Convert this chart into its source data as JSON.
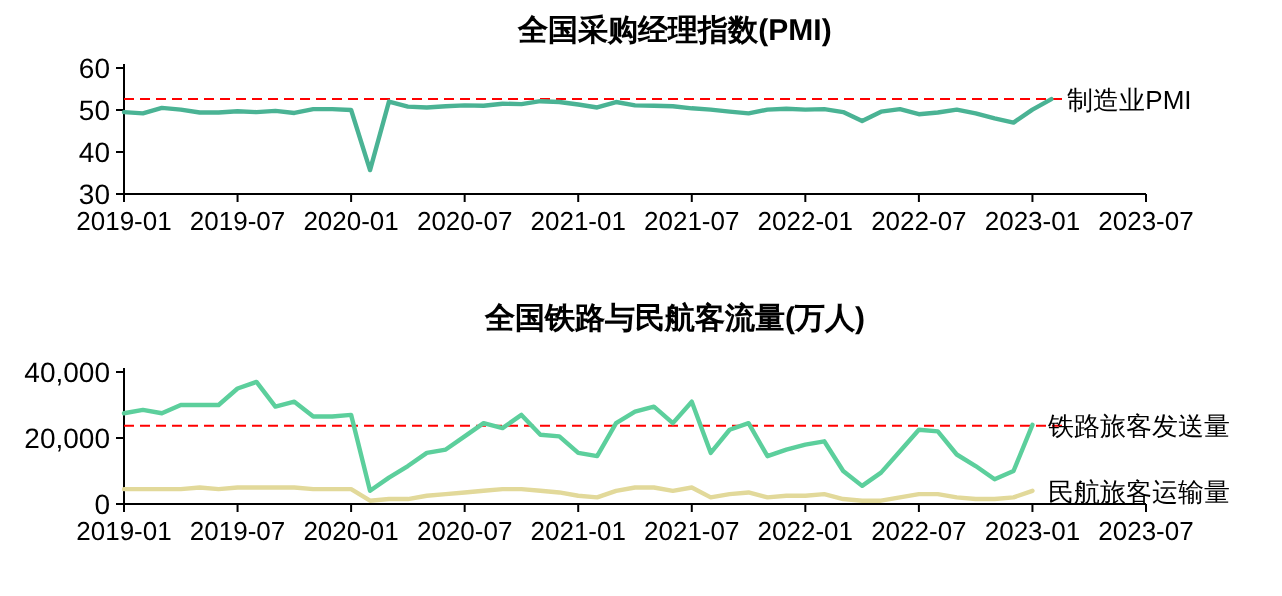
{
  "chart_data": [
    {
      "type": "line",
      "title": "全国采购经理指数(PMI)",
      "x": [
        "2019-01",
        "2019-02",
        "2019-03",
        "2019-04",
        "2019-05",
        "2019-06",
        "2019-07",
        "2019-08",
        "2019-09",
        "2019-10",
        "2019-11",
        "2019-12",
        "2020-01",
        "2020-02",
        "2020-03",
        "2020-04",
        "2020-05",
        "2020-06",
        "2020-07",
        "2020-08",
        "2020-09",
        "2020-10",
        "2020-11",
        "2020-12",
        "2021-01",
        "2021-02",
        "2021-03",
        "2021-04",
        "2021-05",
        "2021-06",
        "2021-07",
        "2021-08",
        "2021-09",
        "2021-10",
        "2021-11",
        "2021-12",
        "2022-01",
        "2022-02",
        "2022-03",
        "2022-04",
        "2022-05",
        "2022-06",
        "2022-07",
        "2022-08",
        "2022-09",
        "2022-10",
        "2022-11",
        "2022-12",
        "2023-01",
        "2023-02"
      ],
      "series": [
        {
          "name": "制造业PMI",
          "color": "#4ab394",
          "values": [
            49.5,
            49.2,
            50.5,
            50.1,
            49.4,
            49.4,
            49.7,
            49.5,
            49.8,
            49.3,
            50.2,
            50.2,
            50.0,
            35.7,
            52.0,
            50.8,
            50.6,
            50.9,
            51.1,
            51.0,
            51.5,
            51.4,
            52.1,
            51.9,
            51.3,
            50.6,
            51.9,
            51.1,
            51.0,
            50.9,
            50.4,
            50.1,
            49.6,
            49.2,
            50.1,
            50.3,
            50.1,
            50.2,
            49.5,
            47.4,
            49.6,
            50.2,
            49.0,
            49.4,
            50.1,
            49.2,
            48.0,
            47.0,
            50.1,
            52.6
          ]
        }
      ],
      "xlim": [
        "2019-01",
        "2023-07"
      ],
      "xticks": [
        "2019-01",
        "2019-07",
        "2020-01",
        "2020-07",
        "2021-01",
        "2021-07",
        "2022-01",
        "2022-07",
        "2023-01",
        "2023-07"
      ],
      "ylim": [
        30,
        60
      ],
      "yticks": [
        30,
        40,
        50,
        60
      ],
      "ref_lines": [
        {
          "axis": "y",
          "value": 52.6,
          "color": "#ff0000",
          "line_style": "dashed"
        }
      ],
      "grid": false,
      "legend": false,
      "marker": "none",
      "line_style": "solid"
    },
    {
      "type": "line",
      "title": "全国铁路与民航客流量(万人)",
      "x": [
        "2019-01",
        "2019-02",
        "2019-03",
        "2019-04",
        "2019-05",
        "2019-06",
        "2019-07",
        "2019-08",
        "2019-09",
        "2019-10",
        "2019-11",
        "2019-12",
        "2020-01",
        "2020-02",
        "2020-03",
        "2020-04",
        "2020-05",
        "2020-06",
        "2020-07",
        "2020-08",
        "2020-09",
        "2020-10",
        "2020-11",
        "2020-12",
        "2021-01",
        "2021-02",
        "2021-03",
        "2021-04",
        "2021-05",
        "2021-06",
        "2021-07",
        "2021-08",
        "2021-09",
        "2021-10",
        "2021-11",
        "2021-12",
        "2022-01",
        "2022-02",
        "2022-03",
        "2022-04",
        "2022-05",
        "2022-06",
        "2022-07",
        "2022-08",
        "2022-09",
        "2022-10",
        "2022-11",
        "2022-12",
        "2023-01"
      ],
      "series": [
        {
          "name": "铁路旅客发送量",
          "color": "#5ccf9c",
          "values": [
            27500,
            28500,
            27500,
            30000,
            30000,
            30000,
            35000,
            37000,
            29500,
            31000,
            26500,
            26500,
            27000,
            4000,
            8000,
            11500,
            15500,
            16500,
            20500,
            24500,
            23000,
            27000,
            21000,
            20500,
            15500,
            14500,
            24500,
            28000,
            29500,
            24500,
            31000,
            15500,
            22500,
            24500,
            14500,
            16500,
            18000,
            19000,
            10000,
            5500,
            9500,
            16000,
            22500,
            22000,
            15000,
            11500,
            7500,
            10000,
            24000
          ]
        },
        {
          "name": "民航旅客运输量",
          "color": "#e2d99a",
          "values": [
            4500,
            4500,
            4500,
            4500,
            5000,
            4500,
            5000,
            5000,
            5000,
            5000,
            4500,
            4500,
            4500,
            1000,
            1500,
            1500,
            2500,
            3000,
            3500,
            4000,
            4500,
            4500,
            4000,
            3500,
            2500,
            2000,
            4000,
            5000,
            5000,
            4000,
            5000,
            2000,
            3000,
            3500,
            2000,
            2500,
            2500,
            3000,
            1500,
            1000,
            1000,
            2000,
            3000,
            3000,
            2000,
            1500,
            1500,
            2000,
            4000
          ]
        }
      ],
      "xlim": [
        "2019-01",
        "2023-07"
      ],
      "xticks": [
        "2019-01",
        "2019-07",
        "2020-01",
        "2020-07",
        "2021-01",
        "2021-07",
        "2022-01",
        "2022-07",
        "2023-01",
        "2023-07"
      ],
      "ylim": [
        0,
        40000
      ],
      "yticks": [
        0,
        {
          "value": 20000,
          "label": "20,000"
        },
        {
          "value": 40000,
          "label": "40,000"
        }
      ],
      "ref_lines": [
        {
          "axis": "y",
          "value": 23750,
          "color": "#ff0000",
          "line_style": "dashed"
        }
      ],
      "grid": false,
      "legend": false,
      "marker": "none",
      "line_style": "solid"
    }
  ]
}
